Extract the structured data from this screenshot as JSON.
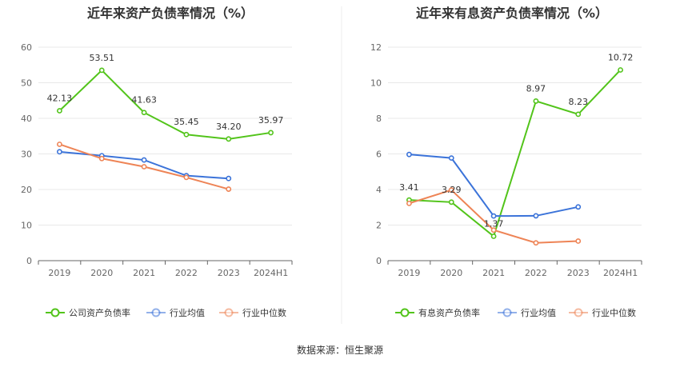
{
  "source": "数据来源：恒生聚源",
  "chart_data": [
    {
      "type": "line",
      "title": "近年来资产负债率情况（%）",
      "categories": [
        "2019",
        "2020",
        "2021",
        "2022",
        "2023",
        "2024H1"
      ],
      "ylim": [
        0,
        60
      ],
      "yticks": [
        "0",
        "10",
        "20",
        "30",
        "40",
        "50",
        "60"
      ],
      "grid": true,
      "legend": "bottom",
      "series": [
        {
          "name": "公司资产负债率",
          "color": "#52c41a",
          "values": [
            42.13,
            53.51,
            41.63,
            35.45,
            34.2,
            35.97
          ],
          "labels": [
            "42.13",
            "53.51",
            "41.63",
            "35.45",
            "34.20",
            "35.97"
          ]
        },
        {
          "name": "行业均值",
          "color": "#3b73d9",
          "values": [
            30.6,
            29.5,
            28.3,
            23.9,
            23.1,
            null
          ]
        },
        {
          "name": "行业中位数",
          "color": "#ee8456",
          "values": [
            32.7,
            28.7,
            26.4,
            23.4,
            20.1,
            null
          ]
        }
      ]
    },
    {
      "type": "line",
      "title": "近年来有息资产负债率情况（%）",
      "categories": [
        "2019",
        "2020",
        "2021",
        "2022",
        "2023",
        "2024H1"
      ],
      "ylim": [
        0,
        12
      ],
      "yticks": [
        "0",
        "2",
        "4",
        "6",
        "8",
        "10",
        "12"
      ],
      "grid": true,
      "legend": "bottom",
      "series": [
        {
          "name": "有息资产负债率",
          "color": "#52c41a",
          "values": [
            3.41,
            3.29,
            1.37,
            8.97,
            8.23,
            10.72
          ],
          "labels": [
            "3.41",
            "3.29",
            "1.37",
            "8.97",
            "8.23",
            "10.72"
          ]
        },
        {
          "name": "行业均值",
          "color": "#3b73d9",
          "values": [
            5.97,
            5.77,
            2.51,
            2.52,
            3.02,
            null
          ]
        },
        {
          "name": "行业中位数",
          "color": "#ee8456",
          "values": [
            3.22,
            3.97,
            1.72,
            1.0,
            1.1,
            null
          ]
        }
      ]
    }
  ]
}
